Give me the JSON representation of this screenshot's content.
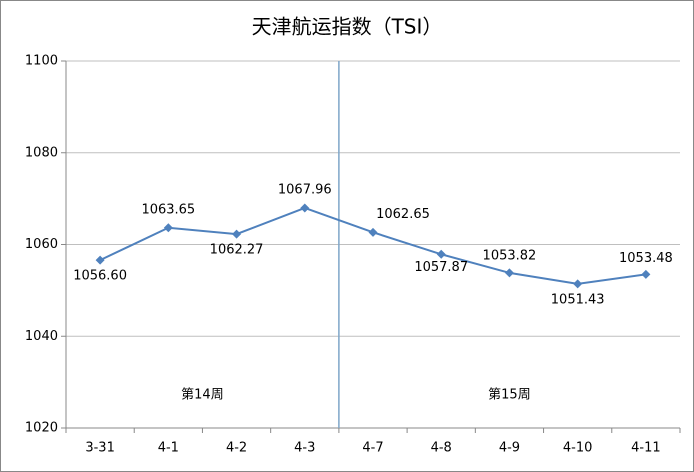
{
  "chart_data": {
    "type": "line",
    "title": "天津航运指数（TSI）",
    "categories": [
      "3-31",
      "4-1",
      "4-2",
      "4-3",
      "4-7",
      "4-8",
      "4-9",
      "4-10",
      "4-11"
    ],
    "values": [
      1056.6,
      1063.65,
      1062.27,
      1067.96,
      1062.65,
      1057.87,
      1053.82,
      1051.43,
      1053.48
    ],
    "value_labels": [
      "1056.60",
      "1063.65",
      "1062.27",
      "1067.96",
      "1062.65",
      "1057.87",
      "1053.82",
      "1051.43",
      "1053.48"
    ],
    "color": "#4f81bd",
    "ylim": [
      1020,
      1100
    ],
    "yticks": [
      1020,
      1040,
      1060,
      1080,
      1100
    ],
    "grid": true,
    "annotations": [
      "第14周",
      "第15周"
    ]
  }
}
